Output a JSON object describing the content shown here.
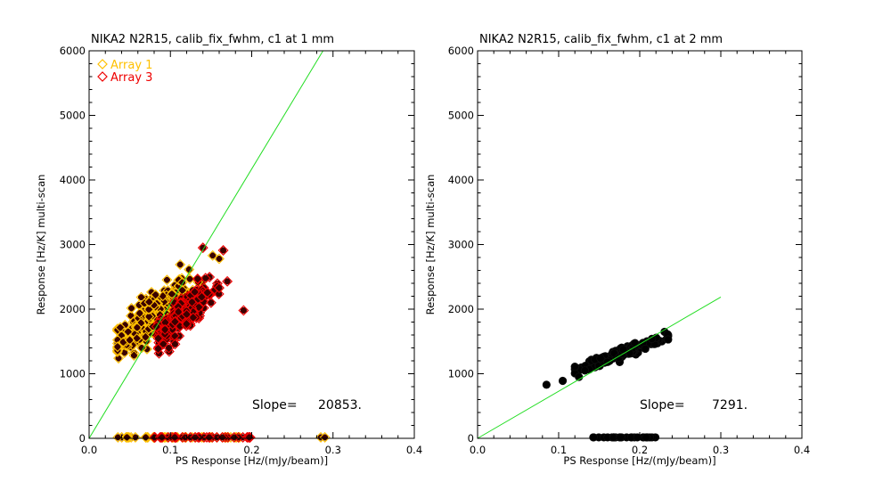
{
  "colors": {
    "array1": "#ffc000",
    "array3": "#ee0000",
    "fitline": "#22dd22",
    "points": "#000000",
    "point_edge_dark": "#3a0000"
  },
  "chart_data": [
    {
      "type": "scatter",
      "title": "NIKA2 N2R15, calib_fix_fwhm, c1 at 1 mm",
      "xlabel": "PS Response [Hz/(mJy/beam)]",
      "ylabel": "Response [Hz/K] multi-scan",
      "xlim": [
        0.0,
        0.4
      ],
      "ylim": [
        0,
        6000
      ],
      "xticks": [
        "0.0",
        "0.1",
        "0.2",
        "0.3",
        "0.4"
      ],
      "yticks": [
        "0",
        "1000",
        "2000",
        "3000",
        "4000",
        "5000",
        "6000"
      ],
      "legend": [
        "Array 1",
        "Array 3"
      ],
      "slope_label": "Slope=",
      "slope_value": "20853.",
      "fit_line": {
        "slope": 20853,
        "intercept": 0,
        "x_range": [
          0.0,
          0.2877
        ]
      },
      "series": [
        {
          "name": "Array 1",
          "marker": "diamond-filled",
          "color": "#ffc000",
          "cluster": {
            "n": 260,
            "x_mean": 0.078,
            "y_intercept": 1150,
            "y_slope": 9500,
            "x_sd": 0.022,
            "y_sd": 170,
            "x_min": 0.035,
            "x_max": 0.16
          },
          "points": [
            [
              0.112,
              2690
            ],
            [
              0.16,
              2780
            ],
            [
              0.152,
              2830
            ],
            [
              0.134,
              2420
            ],
            [
              0.158,
              2300
            ],
            [
              0.042,
              1490
            ],
            [
              0.05,
              1520
            ]
          ],
          "zero_points": {
            "n": 45,
            "x_min": 0.035,
            "x_max": 0.19,
            "y": 15
          },
          "zero_extra": [
            [
              0.285,
              15
            ],
            [
              0.29,
              15
            ]
          ]
        },
        {
          "name": "Array 3",
          "marker": "diamond-filled",
          "color": "#ee0000",
          "cluster": {
            "n": 260,
            "x_mean": 0.115,
            "y_intercept": 740,
            "y_slope": 10200,
            "x_sd": 0.016,
            "y_sd": 120,
            "x_min": 0.085,
            "x_max": 0.16
          },
          "points": [
            [
              0.14,
              2950
            ],
            [
              0.165,
              2910
            ],
            [
              0.17,
              2430
            ],
            [
              0.16,
              2330
            ],
            [
              0.15,
              2100
            ],
            [
              0.19,
              1980
            ],
            [
              0.083,
              1730
            ],
            [
              0.12,
              1920
            ],
            [
              0.128,
              1870
            ]
          ],
          "zero_points": {
            "n": 35,
            "x_min": 0.08,
            "x_max": 0.2,
            "y": 15
          },
          "zero_extra": [
            [
              0.197,
              15
            ]
          ]
        }
      ]
    },
    {
      "type": "scatter",
      "title": "NIKA2 N2R15, calib_fix_fwhm, c1 at 2 mm",
      "xlabel": "PS Response [Hz/(mJy/beam)]",
      "ylabel": "Response [Hz/K] multi-scan",
      "xlim": [
        0.0,
        0.4
      ],
      "ylim": [
        0,
        6000
      ],
      "xticks": [
        "0.0",
        "0.1",
        "0.2",
        "0.3",
        "0.4"
      ],
      "yticks": [
        "0",
        "1000",
        "2000",
        "3000",
        "4000",
        "5000",
        "6000"
      ],
      "slope_label": "Slope=",
      "slope_value": "7291.",
      "fit_line": {
        "slope": 7291,
        "intercept": 0,
        "x_range": [
          0.0,
          0.3
        ]
      },
      "series": [
        {
          "name": "2 mm",
          "marker": "circle-filled",
          "color": "#000000",
          "cluster": {
            "n": 180,
            "x_mean": 0.18,
            "y_intercept": 520,
            "y_slope": 4500,
            "x_sd": 0.025,
            "y_sd": 45,
            "x_min": 0.12,
            "x_max": 0.235
          },
          "points": [
            [
              0.085,
              830
            ],
            [
              0.105,
              890
            ],
            [
              0.235,
              1530
            ],
            [
              0.215,
              1540
            ],
            [
              0.125,
              950
            ]
          ],
          "zero_points": {
            "n": 28,
            "x_min": 0.135,
            "x_max": 0.22,
            "y": 15
          }
        }
      ]
    }
  ]
}
